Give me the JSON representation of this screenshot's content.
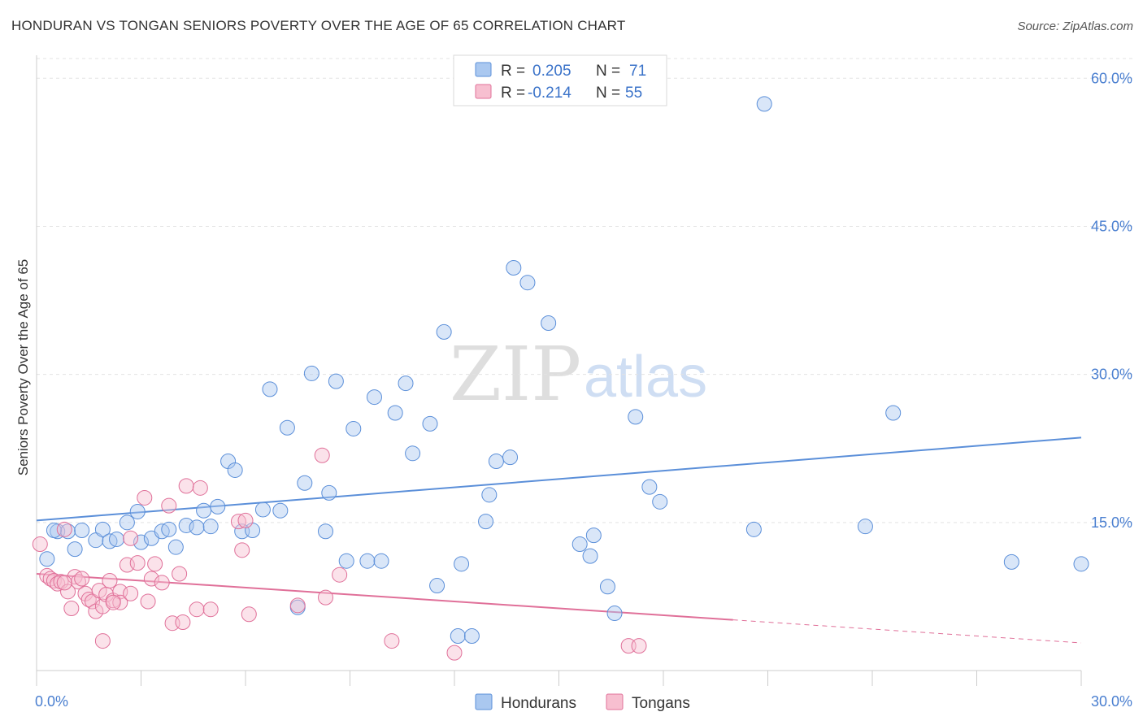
{
  "header": {
    "title": "HONDURAN VS TONGAN SENIORS POVERTY OVER THE AGE OF 65 CORRELATION CHART",
    "source": "Source: ZipAtlas.com"
  },
  "watermark": {
    "zip": "ZIP",
    "atlas": "atlas"
  },
  "legend": {
    "rows": [
      {
        "r_label": "R =",
        "r_value": "0.205",
        "n_label": "N =",
        "n_value": "71",
        "color": "#aac8f0",
        "stroke": "#5b8fd9"
      },
      {
        "r_label": "R =",
        "r_value": "-0.214",
        "n_label": "N =",
        "n_value": "55",
        "color": "#f7bfd0",
        "stroke": "#e07099"
      }
    ]
  },
  "bottom_legend": {
    "items": [
      "Hondurans",
      "Tongans"
    ]
  },
  "chart_data": {
    "type": "scatter",
    "ylabel": "Seniors Poverty Over the Age of 65",
    "xlim": [
      0,
      30
    ],
    "ylim": [
      0,
      62
    ],
    "x_tick_labels": [
      "0.0%",
      "30.0%"
    ],
    "y_ticks": [
      15,
      30,
      45,
      60
    ],
    "y_tick_labels": [
      "15.0%",
      "30.0%",
      "45.0%",
      "60.0%"
    ],
    "grid": true,
    "colors": {
      "hondurans": "#5b8fd9",
      "tongans": "#e07099"
    },
    "series": [
      {
        "name": "Hondurans",
        "points": [
          [
            0.3,
            11.3
          ],
          [
            0.6,
            14.1
          ],
          [
            0.9,
            14.1
          ],
          [
            1.1,
            12.3
          ],
          [
            1.3,
            14.2
          ],
          [
            1.7,
            13.2
          ],
          [
            1.9,
            14.3
          ],
          [
            2.1,
            13.1
          ],
          [
            2.3,
            13.3
          ],
          [
            2.6,
            15.0
          ],
          [
            2.9,
            16.1
          ],
          [
            3.0,
            13.0
          ],
          [
            3.3,
            13.4
          ],
          [
            3.6,
            14.1
          ],
          [
            3.8,
            14.3
          ],
          [
            4.0,
            12.5
          ],
          [
            4.3,
            14.7
          ],
          [
            4.6,
            14.5
          ],
          [
            4.8,
            16.2
          ],
          [
            5.0,
            14.6
          ],
          [
            5.2,
            16.6
          ],
          [
            5.5,
            21.2
          ],
          [
            5.7,
            20.3
          ],
          [
            5.9,
            14.1
          ],
          [
            6.2,
            14.2
          ],
          [
            6.5,
            16.3
          ],
          [
            6.7,
            28.5
          ],
          [
            7.0,
            16.2
          ],
          [
            7.2,
            24.6
          ],
          [
            7.5,
            6.4
          ],
          [
            7.7,
            19.0
          ],
          [
            7.9,
            30.1
          ],
          [
            8.3,
            14.1
          ],
          [
            8.4,
            18.0
          ],
          [
            8.6,
            29.3
          ],
          [
            8.9,
            11.1
          ],
          [
            9.1,
            24.5
          ],
          [
            9.5,
            11.1
          ],
          [
            9.7,
            27.7
          ],
          [
            9.9,
            11.1
          ],
          [
            10.3,
            26.1
          ],
          [
            10.6,
            29.1
          ],
          [
            10.8,
            22.0
          ],
          [
            11.3,
            25.0
          ],
          [
            11.5,
            8.6
          ],
          [
            11.7,
            34.3
          ],
          [
            12.1,
            3.5
          ],
          [
            12.5,
            3.5
          ],
          [
            12.2,
            10.8
          ],
          [
            12.9,
            15.1
          ],
          [
            13.0,
            17.8
          ],
          [
            13.2,
            21.2
          ],
          [
            13.6,
            21.6
          ],
          [
            13.7,
            40.8
          ],
          [
            14.1,
            39.3
          ],
          [
            14.7,
            35.2
          ],
          [
            15.6,
            12.8
          ],
          [
            15.9,
            11.6
          ],
          [
            16.0,
            13.7
          ],
          [
            16.4,
            8.5
          ],
          [
            16.6,
            5.8
          ],
          [
            17.2,
            25.7
          ],
          [
            17.6,
            18.6
          ],
          [
            17.9,
            17.1
          ],
          [
            20.9,
            57.4
          ],
          [
            20.6,
            14.3
          ],
          [
            23.8,
            14.6
          ],
          [
            24.6,
            26.1
          ],
          [
            28.0,
            11.0
          ],
          [
            30.0,
            10.8
          ],
          [
            0.5,
            14.2
          ]
        ]
      },
      {
        "name": "Tongans",
        "points": [
          [
            0.1,
            12.8
          ],
          [
            0.3,
            9.6
          ],
          [
            0.4,
            9.3
          ],
          [
            0.5,
            9.1
          ],
          [
            0.6,
            8.8
          ],
          [
            0.7,
            9.0
          ],
          [
            0.8,
            14.3
          ],
          [
            0.9,
            8.0
          ],
          [
            1.0,
            6.3
          ],
          [
            1.1,
            9.5
          ],
          [
            1.2,
            9.0
          ],
          [
            1.4,
            7.8
          ],
          [
            1.5,
            7.2
          ],
          [
            1.6,
            7.0
          ],
          [
            1.7,
            6.0
          ],
          [
            1.8,
            8.1
          ],
          [
            1.9,
            6.5
          ],
          [
            1.9,
            3.0
          ],
          [
            2.0,
            7.7
          ],
          [
            2.1,
            9.1
          ],
          [
            2.2,
            7.1
          ],
          [
            2.4,
            8.0
          ],
          [
            2.4,
            6.9
          ],
          [
            2.6,
            10.7
          ],
          [
            2.7,
            13.4
          ],
          [
            2.7,
            7.8
          ],
          [
            2.9,
            10.9
          ],
          [
            3.1,
            17.5
          ],
          [
            3.2,
            7.0
          ],
          [
            3.3,
            9.3
          ],
          [
            3.4,
            10.8
          ],
          [
            3.6,
            8.9
          ],
          [
            3.8,
            16.7
          ],
          [
            3.9,
            4.8
          ],
          [
            4.1,
            9.8
          ],
          [
            4.2,
            4.9
          ],
          [
            4.3,
            18.7
          ],
          [
            4.6,
            6.2
          ],
          [
            4.7,
            18.5
          ],
          [
            5.0,
            6.2
          ],
          [
            5.8,
            15.1
          ],
          [
            5.9,
            12.2
          ],
          [
            6.0,
            15.2
          ],
          [
            6.1,
            5.7
          ],
          [
            7.5,
            6.6
          ],
          [
            8.2,
            21.8
          ],
          [
            8.3,
            7.4
          ],
          [
            8.7,
            9.7
          ],
          [
            10.2,
            3.0
          ],
          [
            12.0,
            1.8
          ],
          [
            17.0,
            2.5
          ],
          [
            17.3,
            2.5
          ],
          [
            2.2,
            6.9
          ],
          [
            1.3,
            9.3
          ],
          [
            0.8,
            8.9
          ]
        ]
      }
    ],
    "trendlines": [
      {
        "series": "Hondurans",
        "x0": 0,
        "y0": 15.2,
        "x1": 30,
        "y1": 23.6
      },
      {
        "series": "Tongans",
        "x0": 0,
        "y0": 9.8,
        "x1": 30,
        "y1": 2.8,
        "solid_until_x": 20.0
      }
    ]
  }
}
